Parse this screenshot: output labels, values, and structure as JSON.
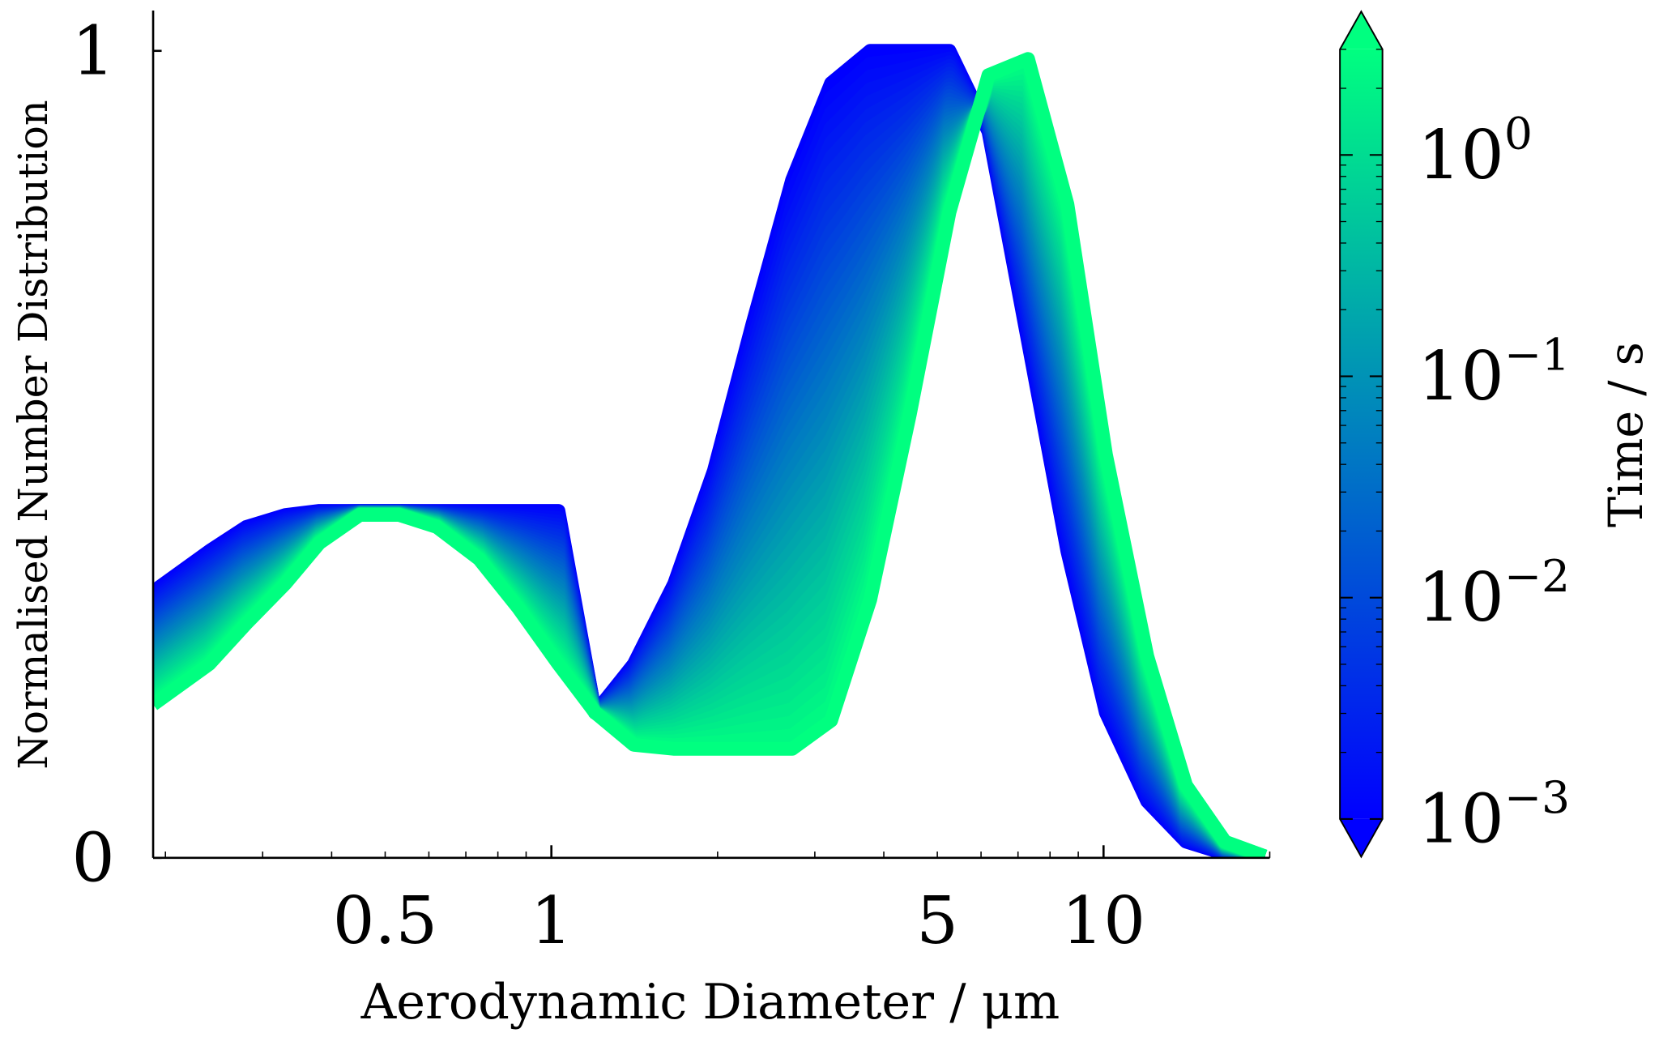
{
  "chart_data": {
    "type": "line",
    "xlabel": "Aerodynamic Diameter / μm",
    "ylabel": "Normalised Number Distribution",
    "x_scale": "log",
    "xlim": [
      0.19,
      20
    ],
    "ylim": [
      0,
      1.05
    ],
    "x_ticks": [
      {
        "value": 0.5,
        "label": "0.5"
      },
      {
        "value": 1,
        "label": "1"
      },
      {
        "value": 5,
        "label": "5"
      },
      {
        "value": 10,
        "label": "10"
      }
    ],
    "y_ticks": [
      {
        "value": 0,
        "label": "0"
      },
      {
        "value": 1,
        "label": "1"
      }
    ],
    "colorbar": {
      "label": "Time / s",
      "scale": "log",
      "range": [
        0.001,
        3
      ],
      "extend": "both",
      "colors": [
        "#0000ff",
        "#00ff80"
      ],
      "ticks": [
        {
          "value": 0.001,
          "base": "10",
          "exp": "−3"
        },
        {
          "value": 0.01,
          "base": "10",
          "exp": "−2"
        },
        {
          "value": 0.1,
          "base": "10",
          "exp": "−1"
        },
        {
          "value": 1,
          "base": "10",
          "exp": "0"
        }
      ]
    },
    "series": [
      {
        "time_s": 0.001,
        "x": [
          0.19,
          0.24,
          0.28,
          0.33,
          0.38,
          0.45,
          0.53,
          0.62,
          0.74,
          0.87,
          1.03,
          1.2,
          1.41,
          1.67,
          1.97,
          2.31,
          2.73,
          3.21,
          3.78,
          4.46,
          5.26,
          6.19,
          7.3,
          8.6,
          10.1,
          12.0,
          14.1,
          16.6,
          19.6
        ],
        "y": [
          0.33,
          0.38,
          0.41,
          0.425,
          0.43,
          0.43,
          0.43,
          0.43,
          0.43,
          0.43,
          0.43,
          0.18,
          0.24,
          0.34,
          0.48,
          0.66,
          0.84,
          0.96,
          1.0,
          1.0,
          1.0,
          0.9,
          0.64,
          0.38,
          0.18,
          0.07,
          0.02,
          0.005,
          0.0
        ]
      },
      {
        "time_s": 3,
        "x": [
          0.19,
          0.24,
          0.28,
          0.33,
          0.38,
          0.45,
          0.53,
          0.62,
          0.74,
          0.87,
          1.03,
          1.2,
          1.41,
          1.67,
          1.97,
          2.31,
          2.73,
          3.21,
          3.78,
          4.46,
          5.26,
          6.19,
          7.3,
          8.6,
          10.1,
          12.0,
          14.1,
          16.6,
          19.6
        ],
        "y": [
          0.19,
          0.24,
          0.29,
          0.34,
          0.39,
          0.425,
          0.425,
          0.41,
          0.37,
          0.31,
          0.24,
          0.18,
          0.14,
          0.135,
          0.135,
          0.135,
          0.135,
          0.17,
          0.32,
          0.55,
          0.8,
          0.97,
          0.99,
          0.81,
          0.5,
          0.25,
          0.09,
          0.02,
          0.002
        ]
      }
    ]
  }
}
